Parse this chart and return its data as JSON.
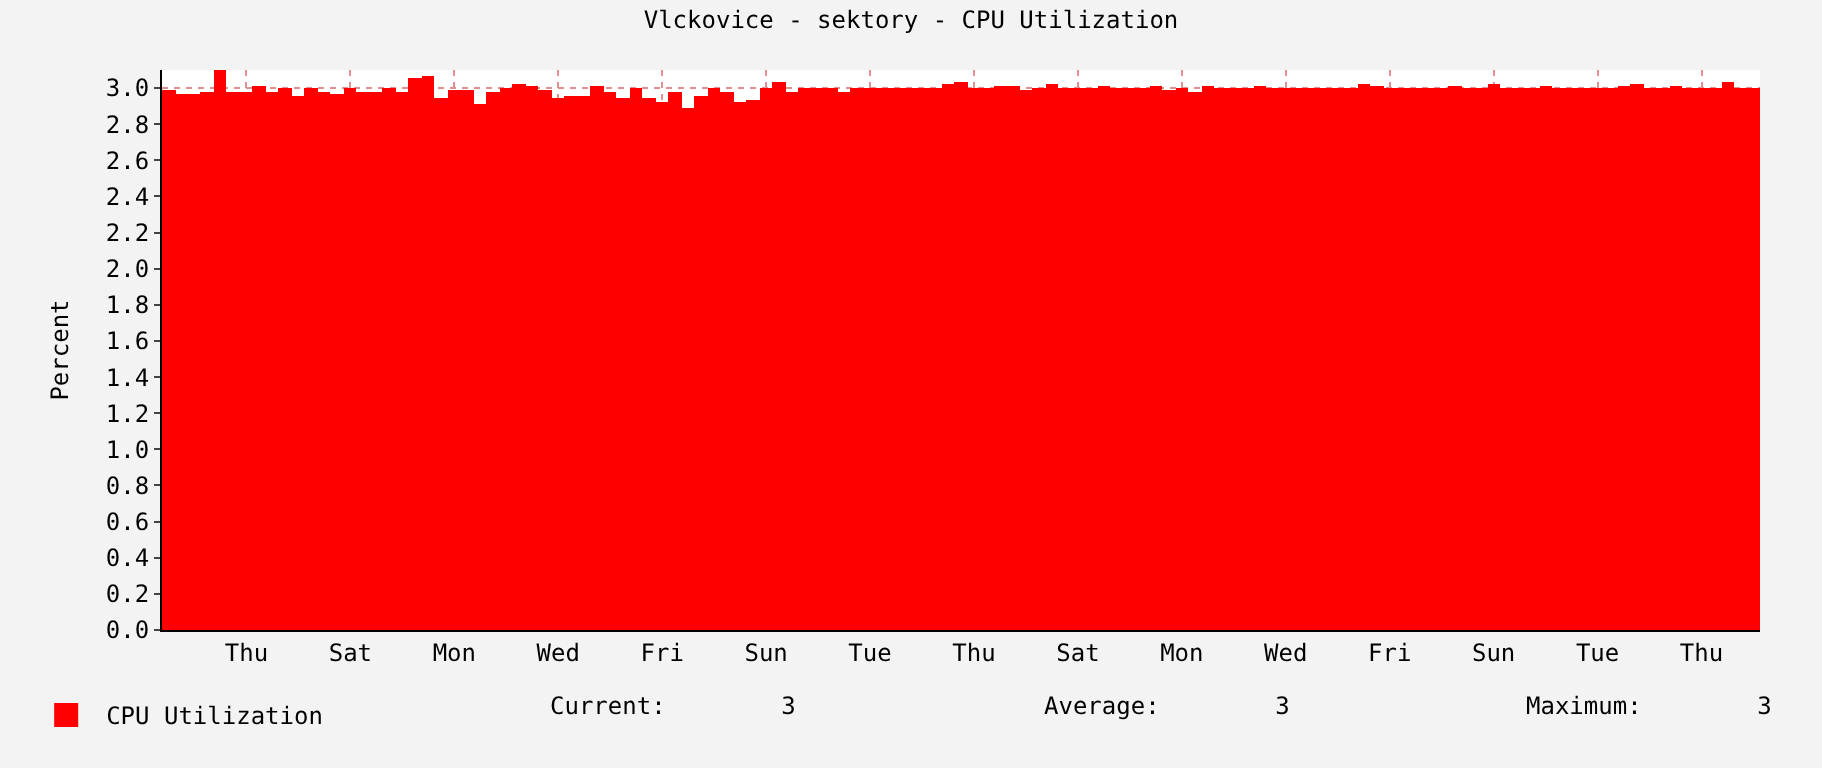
{
  "chart_data": {
    "type": "bar",
    "title": "Vlckovice - sektory - CPU Utilization",
    "ylabel": "Percent",
    "categories": [
      null,
      null,
      null,
      null,
      null,
      null,
      "Thu",
      null,
      null,
      null,
      null,
      null,
      null,
      null,
      "Sat",
      null,
      null,
      null,
      null,
      null,
      null,
      null,
      "Mon",
      null,
      null,
      null,
      null,
      null,
      null,
      null,
      "Wed",
      null,
      null,
      null,
      null,
      null,
      null,
      null,
      "Fri",
      null,
      null,
      null,
      null,
      null,
      null,
      null,
      "Sun",
      null,
      null,
      null,
      null,
      null,
      null,
      null,
      "Tue",
      null,
      null,
      null,
      null,
      null,
      null,
      null,
      "Thu",
      null,
      null,
      null,
      null,
      null,
      null,
      null,
      "Sat",
      null,
      null,
      null,
      null,
      null,
      null,
      null,
      "Mon",
      null,
      null,
      null,
      null,
      null,
      null,
      null,
      "Wed",
      null,
      null,
      null,
      null,
      null,
      null,
      null,
      "Fri",
      null,
      null,
      null,
      null,
      null,
      null,
      null,
      "Sun",
      null,
      null,
      null,
      null,
      null,
      null,
      null,
      "Tue",
      null,
      null,
      null,
      null,
      null,
      null,
      null,
      "Thu",
      null,
      null,
      null,
      null
    ],
    "series": [
      {
        "name": "CPU Utilization",
        "color": "#ff0000",
        "values": [
          2.99,
          2.97,
          2.97,
          2.98,
          3.1,
          2.98,
          2.98,
          3.01,
          2.98,
          3.0,
          2.96,
          3.0,
          2.98,
          2.97,
          3.0,
          2.98,
          2.98,
          3.0,
          2.98,
          3.06,
          3.07,
          2.95,
          2.99,
          2.99,
          2.91,
          2.98,
          3.0,
          3.02,
          3.01,
          2.99,
          2.94,
          2.96,
          2.96,
          3.01,
          2.98,
          2.95,
          3.0,
          2.94,
          2.92,
          2.98,
          2.89,
          2.96,
          3.0,
          2.98,
          2.92,
          2.93,
          3.0,
          3.03,
          2.98,
          3.0,
          3.0,
          3.0,
          2.98,
          3.0,
          3.0,
          3.0,
          3.0,
          3.0,
          3.0,
          3.0,
          3.02,
          3.03,
          3.0,
          3.0,
          3.01,
          3.01,
          2.99,
          3.0,
          3.02,
          3.0,
          3.0,
          3.0,
          3.01,
          3.0,
          3.0,
          3.0,
          3.01,
          2.99,
          3.0,
          2.98,
          3.01,
          3.0,
          3.0,
          3.0,
          3.01,
          3.0,
          3.0,
          3.0,
          3.0,
          3.0,
          3.0,
          3.0,
          3.02,
          3.01,
          3.0,
          3.0,
          3.0,
          3.0,
          3.0,
          3.01,
          3.0,
          3.0,
          3.02,
          3.0,
          3.0,
          3.0,
          3.01,
          3.0,
          3.0,
          3.0,
          3.0,
          3.0,
          3.01,
          3.02,
          3.0,
          3.0,
          3.01,
          3.0,
          3.0,
          3.0,
          3.03,
          3.0,
          3.0
        ]
      }
    ],
    "ylim": [
      0,
      3.1
    ],
    "yticks": [
      {
        "value": 0,
        "label": "0.0"
      },
      {
        "value": 0.2,
        "label": "0.2"
      },
      {
        "value": 0.4,
        "label": "0.4"
      },
      {
        "value": 0.6,
        "label": "0.6"
      },
      {
        "value": 0.8,
        "label": "0.8"
      },
      {
        "value": 1.0,
        "label": "1.0"
      },
      {
        "value": 1.2,
        "label": "1.2"
      },
      {
        "value": 1.4,
        "label": "1.4"
      },
      {
        "value": 1.6,
        "label": "1.6"
      },
      {
        "value": 1.8,
        "label": "1.8"
      },
      {
        "value": 2.0,
        "label": "2.0"
      },
      {
        "value": 2.2,
        "label": "2.2"
      },
      {
        "value": 2.4,
        "label": "2.4"
      },
      {
        "value": 2.6,
        "label": "2.6"
      },
      {
        "value": 2.8,
        "label": "2.8"
      },
      {
        "value": 3.0,
        "label": "3.0"
      }
    ],
    "grid": true,
    "legend": "bottom left",
    "annotations": [
      "Current:        3",
      "Average:        3",
      "Maximum:        3"
    ]
  }
}
